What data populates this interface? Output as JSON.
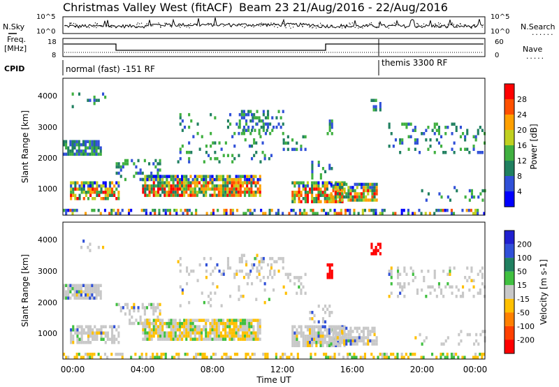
{
  "header": {
    "title": "Christmas Valley West (fitACF)",
    "subtitle": "Beam 23 21/Aug/2016 - 22/Aug/2016"
  },
  "left_labels": {
    "nsky": "N.Sky",
    "freq": "Freq.",
    "freq_unit": "[MHz]",
    "cpid": "CPID"
  },
  "right_labels": {
    "nsearch": "N.Search",
    "nave": "Nave"
  },
  "noise_panel": {
    "y_ticks_left": [
      "10^5",
      "10^0"
    ],
    "y_ticks_right": [
      "10^5",
      "10^0"
    ]
  },
  "freq_panel": {
    "y_ticks_left": [
      "18",
      "8"
    ],
    "y_ticks_right": [
      "60",
      "0"
    ]
  },
  "cpid_panel": {
    "modes": [
      {
        "label": "normal (fast) -151 RF",
        "start_hour": 0
      },
      {
        "label": "themis 3300 RF",
        "start_hour": 18
      }
    ]
  },
  "chart_data": [
    {
      "type": "heatmap",
      "name": "power",
      "ylabel": "Slant Range [km]",
      "y_ticks": [
        "1000",
        "2000",
        "3000",
        "4000"
      ],
      "colorbar": {
        "label": "Power [dB]",
        "ticks": [
          "4",
          "8",
          "12",
          "16",
          "20",
          "24",
          "28"
        ],
        "colors": [
          "#0000ff",
          "#3050d8",
          "#208060",
          "#40b040",
          "#c0d020",
          "#ffa000",
          "#ff5000",
          "#ff0000"
        ]
      }
    },
    {
      "type": "heatmap",
      "name": "velocity",
      "ylabel": "Slant Range [km]",
      "y_ticks": [
        "1000",
        "2000",
        "3000",
        "4000"
      ],
      "colorbar": {
        "label": "Velocity [m s-1]",
        "ticks": [
          "200",
          "100",
          "50",
          "15",
          "-15",
          "-50",
          "-100",
          "-200"
        ],
        "colors": [
          "#2020d0",
          "#3050d8",
          "#208060",
          "#40c040",
          "#c8c8c8",
          "#ffc000",
          "#ff8000",
          "#ff4000",
          "#ff0000"
        ]
      }
    }
  ],
  "time_axis": {
    "ticks": [
      "00:00",
      "04:00",
      "08:00",
      "12:00",
      "16:00",
      "20:00",
      "00:00"
    ],
    "label": "Time UT"
  }
}
